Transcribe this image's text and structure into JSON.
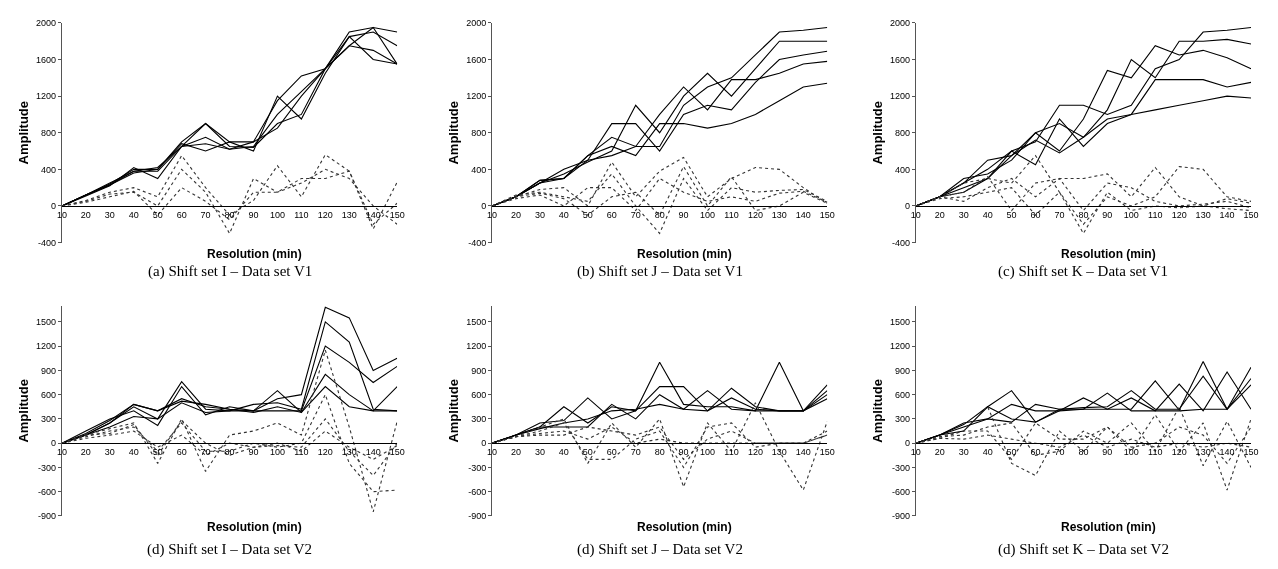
{
  "chart_data": [
    {
      "type": "line",
      "title": "(a) Shift set I – Data set V1",
      "xlabel": "Resolution (min)",
      "ylabel": "Amplitude",
      "x": [
        10,
        20,
        30,
        40,
        50,
        60,
        70,
        80,
        90,
        100,
        110,
        120,
        130,
        140,
        150
      ],
      "xlim": [
        10,
        150
      ],
      "xticks": [
        10,
        20,
        30,
        40,
        50,
        60,
        70,
        80,
        90,
        100,
        110,
        120,
        130,
        140,
        150
      ],
      "ylim": [
        -400,
        2000
      ],
      "yticks": [
        -400,
        0,
        400,
        800,
        1200,
        1600,
        2000
      ],
      "series": [
        {
          "color": "#000000",
          "line_style": "solid",
          "values": [
            0,
            120,
            230,
            380,
            420,
            650,
            900,
            700,
            700,
            1150,
            1420,
            1500,
            1900,
            1950,
            1900
          ]
        },
        {
          "color": "#000000",
          "line_style": "solid",
          "values": [
            0,
            110,
            220,
            420,
            300,
            650,
            750,
            620,
            650,
            1000,
            1250,
            1500,
            1750,
            1950,
            1550
          ]
        },
        {
          "color": "#000000",
          "line_style": "solid",
          "values": [
            0,
            120,
            240,
            400,
            400,
            700,
            900,
            650,
            640,
            900,
            1000,
            1500,
            1750,
            1700,
            1550
          ]
        },
        {
          "color": "#000000",
          "line_style": "solid",
          "values": [
            0,
            120,
            250,
            380,
            380,
            650,
            680,
            620,
            700,
            850,
            1200,
            1500,
            1850,
            1600,
            1550
          ]
        },
        {
          "color": "#000000",
          "line_style": "solid",
          "values": [
            0,
            120,
            230,
            360,
            400,
            680,
            600,
            700,
            600,
            1200,
            950,
            1450,
            1850,
            1900,
            1750
          ]
        },
        {
          "color": "#333333",
          "line_style": "dotted",
          "values": [
            0,
            60,
            150,
            200,
            100,
            550,
            200,
            -100,
            60,
            440,
            100,
            560,
            380,
            -250,
            260
          ]
        },
        {
          "color": "#333333",
          "line_style": "dotted",
          "values": [
            0,
            50,
            130,
            150,
            0,
            400,
            150,
            -300,
            300,
            150,
            250,
            400,
            300,
            0,
            -200
          ]
        },
        {
          "color": "#333333",
          "line_style": "dotted",
          "values": [
            0,
            40,
            100,
            160,
            -100,
            200,
            50,
            -150,
            150,
            150,
            300,
            300,
            380,
            -200,
            30
          ]
        }
      ]
    },
    {
      "type": "line",
      "title": "(b) Shift set J – Data set V1",
      "xlabel": "Resolution (min)",
      "ylabel": "Amplitude",
      "x": [
        10,
        20,
        30,
        40,
        50,
        60,
        70,
        80,
        90,
        100,
        110,
        120,
        130,
        140,
        150
      ],
      "xlim": [
        10,
        150
      ],
      "xticks": [
        10,
        20,
        30,
        40,
        50,
        60,
        70,
        80,
        90,
        100,
        110,
        120,
        130,
        140,
        150
      ],
      "ylim": [
        -400,
        2000
      ],
      "yticks": [
        -400,
        0,
        400,
        800,
        1200,
        1600,
        2000
      ],
      "series": [
        {
          "color": "#000000",
          "line_style": "solid",
          "values": [
            0,
            100,
            250,
            400,
            500,
            550,
            650,
            650,
            1100,
            1300,
            1400,
            1650,
            1900,
            1920,
            1950
          ]
        },
        {
          "color": "#000000",
          "line_style": "solid",
          "values": [
            0,
            100,
            250,
            350,
            480,
            600,
            1100,
            800,
            1200,
            1450,
            1200,
            1500,
            1800,
            1800,
            1800
          ]
        },
        {
          "color": "#000000",
          "line_style": "solid",
          "values": [
            0,
            100,
            280,
            300,
            500,
            900,
            900,
            600,
            1000,
            1100,
            1050,
            1350,
            1600,
            1650,
            1690
          ]
        },
        {
          "color": "#000000",
          "line_style": "solid",
          "values": [
            0,
            100,
            250,
            300,
            550,
            750,
            650,
            1000,
            1300,
            1050,
            1380,
            1380,
            1450,
            1550,
            1580
          ]
        },
        {
          "color": "#000000",
          "line_style": "solid",
          "values": [
            0,
            100,
            280,
            300,
            550,
            650,
            550,
            900,
            900,
            850,
            900,
            1000,
            1150,
            1300,
            1340
          ]
        },
        {
          "color": "#333333",
          "line_style": "dotted",
          "values": [
            0,
            100,
            180,
            200,
            0,
            480,
            100,
            380,
            530,
            100,
            300,
            420,
            400,
            200,
            30
          ]
        },
        {
          "color": "#333333",
          "line_style": "dotted",
          "values": [
            0,
            120,
            150,
            100,
            50,
            350,
            0,
            -300,
            300,
            -50,
            200,
            150,
            170,
            180,
            50
          ]
        },
        {
          "color": "#333333",
          "line_style": "dotted",
          "values": [
            0,
            80,
            120,
            0,
            200,
            200,
            -50,
            300,
            150,
            50,
            100,
            50,
            140,
            160,
            40
          ]
        },
        {
          "color": "#333333",
          "line_style": "dotted",
          "values": [
            0,
            100,
            140,
            80,
            -100,
            100,
            150,
            -100,
            430,
            0,
            320,
            -50,
            0,
            150,
            30
          ]
        }
      ]
    },
    {
      "type": "line",
      "title": "(c) Shift set K – Data set V1",
      "xlabel": "Resolution (min)",
      "ylabel": "Amplitude",
      "x": [
        10,
        20,
        30,
        40,
        50,
        60,
        70,
        80,
        90,
        100,
        110,
        120,
        130,
        140,
        150
      ],
      "xlim": [
        10,
        150
      ],
      "xticks": [
        10,
        20,
        30,
        40,
        50,
        60,
        70,
        80,
        90,
        100,
        110,
        120,
        130,
        140,
        150
      ],
      "ylim": [
        -400,
        2000
      ],
      "yticks": [
        -400,
        0,
        400,
        800,
        1200,
        1600,
        2000
      ],
      "series": [
        {
          "color": "#000000",
          "line_style": "solid",
          "values": [
            0,
            100,
            250,
            400,
            600,
            700,
            1100,
            1100,
            1000,
            1100,
            1500,
            1600,
            1900,
            1920,
            1950
          ]
        },
        {
          "color": "#000000",
          "line_style": "solid",
          "values": [
            0,
            100,
            250,
            500,
            550,
            800,
            900,
            750,
            1050,
            1600,
            1400,
            1800,
            1800,
            1820,
            1770
          ]
        },
        {
          "color": "#000000",
          "line_style": "solid",
          "values": [
            0,
            100,
            300,
            350,
            500,
            800,
            600,
            950,
            1480,
            1400,
            1750,
            1650,
            1700,
            1620,
            1500
          ]
        },
        {
          "color": "#000000",
          "line_style": "solid",
          "values": [
            0,
            100,
            200,
            300,
            600,
            450,
            950,
            650,
            900,
            1000,
            1380,
            1380,
            1380,
            1300,
            1350
          ]
        },
        {
          "color": "#000000",
          "line_style": "solid",
          "values": [
            0,
            100,
            150,
            300,
            550,
            720,
            580,
            750,
            950,
            1000,
            1050,
            1100,
            1150,
            1200,
            1180
          ]
        },
        {
          "color": "#333333",
          "line_style": "dotted",
          "values": [
            0,
            100,
            250,
            300,
            250,
            550,
            150,
            -200,
            100,
            0,
            100,
            430,
            400,
            100,
            50
          ]
        },
        {
          "color": "#333333",
          "line_style": "dotted",
          "values": [
            0,
            100,
            150,
            320,
            -50,
            250,
            300,
            300,
            350,
            100,
            420,
            100,
            0,
            80,
            30
          ]
        },
        {
          "color": "#333333",
          "line_style": "dotted",
          "values": [
            0,
            100,
            50,
            200,
            300,
            100,
            300,
            -50,
            250,
            200,
            50,
            0,
            20,
            50,
            -20
          ]
        },
        {
          "color": "#333333",
          "line_style": "dotted",
          "values": [
            0,
            80,
            100,
            150,
            200,
            -100,
            150,
            -300,
            150,
            -50,
            0,
            -20,
            0,
            -30,
            -50
          ]
        }
      ]
    },
    {
      "type": "line",
      "title": "(d) Shift set I – Data set V2",
      "xlabel": "Resolution (min)",
      "ylabel": "Amplitude",
      "x": [
        10,
        20,
        30,
        40,
        50,
        60,
        70,
        80,
        90,
        100,
        110,
        120,
        130,
        140,
        150
      ],
      "xlim": [
        10,
        150
      ],
      "xticks": [
        10,
        20,
        30,
        40,
        50,
        60,
        70,
        80,
        90,
        100,
        110,
        120,
        130,
        140,
        150
      ],
      "ylim": [
        -900,
        1700
      ],
      "yticks": [
        -900,
        -600,
        -300,
        0,
        300,
        600,
        900,
        1200,
        1500
      ],
      "series": [
        {
          "color": "#000000",
          "line_style": "solid",
          "values": [
            0,
            120,
            280,
            480,
            400,
            550,
            450,
            420,
            400,
            550,
            600,
            1680,
            1550,
            900,
            1050
          ]
        },
        {
          "color": "#000000",
          "line_style": "solid",
          "values": [
            0,
            100,
            250,
            450,
            300,
            760,
            420,
            400,
            480,
            500,
            420,
            1500,
            1250,
            420,
            400
          ]
        },
        {
          "color": "#000000",
          "line_style": "solid",
          "values": [
            0,
            150,
            300,
            400,
            220,
            700,
            350,
            450,
            400,
            400,
            400,
            1200,
            1000,
            750,
            950
          ]
        },
        {
          "color": "#000000",
          "line_style": "solid",
          "values": [
            0,
            100,
            200,
            330,
            300,
            500,
            380,
            400,
            400,
            650,
            380,
            850,
            600,
            400,
            700
          ]
        },
        {
          "color": "#000000",
          "line_style": "solid",
          "values": [
            0,
            100,
            250,
            480,
            400,
            520,
            480,
            420,
            380,
            450,
            380,
            700,
            450,
            400,
            400
          ]
        },
        {
          "color": "#333333",
          "line_style": "dotted",
          "values": [
            0,
            100,
            180,
            250,
            -250,
            300,
            -350,
            100,
            150,
            250,
            100,
            1150,
            200,
            -850,
            270
          ]
        },
        {
          "color": "#333333",
          "line_style": "dotted",
          "values": [
            0,
            80,
            150,
            200,
            -100,
            250,
            -100,
            -100,
            0,
            -50,
            0,
            600,
            -250,
            -600,
            -580
          ]
        },
        {
          "color": "#333333",
          "line_style": "dotted",
          "values": [
            0,
            60,
            100,
            150,
            -50,
            100,
            -150,
            0,
            -50,
            -30,
            -50,
            300,
            -100,
            -400,
            0
          ]
        },
        {
          "color": "#333333",
          "line_style": "dotted",
          "values": [
            0,
            100,
            120,
            230,
            -150,
            280,
            0,
            -150,
            -50,
            0,
            -100,
            150,
            -50,
            -200,
            -30
          ]
        }
      ]
    },
    {
      "type": "line",
      "title": "(d) Shift set J – Data set V2",
      "xlabel": "Resolution (min)",
      "ylabel": "Amplitude",
      "x": [
        10,
        20,
        30,
        40,
        50,
        60,
        70,
        80,
        90,
        100,
        110,
        120,
        130,
        140,
        150
      ],
      "xlim": [
        10,
        150
      ],
      "xticks": [
        10,
        20,
        30,
        40,
        50,
        60,
        70,
        80,
        90,
        100,
        110,
        120,
        130,
        140,
        150
      ],
      "ylim": [
        -900,
        1700
      ],
      "yticks": [
        -900,
        -600,
        -300,
        0,
        300,
        600,
        900,
        1200,
        1500
      ],
      "series": [
        {
          "color": "#000000",
          "line_style": "solid",
          "values": [
            0,
            100,
            200,
            450,
            250,
            450,
            400,
            1000,
            480,
            450,
            450,
            400,
            1000,
            400,
            720
          ]
        },
        {
          "color": "#000000",
          "line_style": "solid",
          "values": [
            0,
            100,
            250,
            280,
            560,
            300,
            400,
            700,
            700,
            400,
            680,
            450,
            400,
            400,
            650
          ]
        },
        {
          "color": "#000000",
          "line_style": "solid",
          "values": [
            0,
            100,
            200,
            200,
            200,
            480,
            300,
            600,
            420,
            650,
            420,
            400,
            400,
            400,
            600
          ]
        },
        {
          "color": "#000000",
          "line_style": "solid",
          "values": [
            0,
            100,
            180,
            250,
            300,
            400,
            420,
            480,
            420,
            400,
            560,
            420,
            400,
            400,
            550
          ]
        },
        {
          "color": "#333333",
          "line_style": "dotted",
          "values": [
            0,
            80,
            200,
            300,
            -250,
            250,
            -50,
            300,
            -540,
            250,
            -100,
            500,
            -100,
            -580,
            270
          ]
        },
        {
          "color": "#333333",
          "line_style": "dotted",
          "values": [
            0,
            80,
            150,
            250,
            -200,
            -200,
            50,
            150,
            -300,
            200,
            250,
            -50,
            0,
            0,
            150
          ]
        },
        {
          "color": "#333333",
          "line_style": "dotted",
          "values": [
            0,
            80,
            100,
            100,
            200,
            150,
            100,
            200,
            -200,
            50,
            150,
            0,
            0,
            0,
            100
          ]
        },
        {
          "color": "#333333",
          "line_style": "dotted",
          "values": [
            0,
            80,
            120,
            150,
            50,
            200,
            0,
            50,
            0,
            0,
            0,
            0,
            0,
            0,
            100
          ]
        }
      ]
    },
    {
      "type": "line",
      "title": "(d) Shift set K – Data set V2",
      "xlabel": "Resolution (min)",
      "ylabel": "Amplitude",
      "x": [
        10,
        20,
        30,
        40,
        50,
        60,
        70,
        80,
        90,
        100,
        110,
        120,
        130,
        140,
        150
      ],
      "xlim": [
        10,
        150
      ],
      "xticks": [
        10,
        20,
        30,
        40,
        50,
        60,
        70,
        80,
        90,
        100,
        110,
        120,
        130,
        140,
        150
      ],
      "ylim": [
        -900,
        1700
      ],
      "yticks": [
        -900,
        -600,
        -300,
        0,
        300,
        600,
        900,
        1200,
        1500
      ],
      "series": [
        {
          "color": "#000000",
          "line_style": "solid",
          "values": [
            0,
            100,
            230,
            450,
            650,
            260,
            400,
            560,
            420,
            420,
            770,
            410,
            1010,
            420,
            940
          ]
        },
        {
          "color": "#000000",
          "line_style": "solid",
          "values": [
            0,
            100,
            250,
            300,
            260,
            480,
            420,
            420,
            620,
            400,
            400,
            730,
            400,
            880,
            420
          ]
        },
        {
          "color": "#000000",
          "line_style": "solid",
          "values": [
            0,
            100,
            150,
            450,
            300,
            260,
            420,
            440,
            450,
            650,
            420,
            420,
            830,
            420,
            800
          ]
        },
        {
          "color": "#000000",
          "line_style": "solid",
          "values": [
            0,
            100,
            200,
            300,
            480,
            400,
            400,
            420,
            420,
            560,
            400,
            400,
            420,
            420,
            720
          ]
        },
        {
          "color": "#333333",
          "line_style": "dotted",
          "values": [
            0,
            80,
            150,
            450,
            -250,
            -400,
            150,
            -100,
            200,
            -100,
            350,
            -100,
            250,
            -580,
            300
          ]
        },
        {
          "color": "#333333",
          "line_style": "dotted",
          "values": [
            0,
            80,
            100,
            200,
            250,
            -150,
            -100,
            150,
            0,
            250,
            -100,
            450,
            -280,
            270,
            -300
          ]
        },
        {
          "color": "#333333",
          "line_style": "dotted",
          "values": [
            0,
            60,
            150,
            150,
            -200,
            250,
            50,
            50,
            200,
            -50,
            0,
            200,
            100,
            -250,
            200
          ]
        },
        {
          "color": "#333333",
          "line_style": "dotted",
          "values": [
            0,
            60,
            50,
            100,
            50,
            0,
            -50,
            100,
            -50,
            50,
            -50,
            0,
            -50,
            0,
            -50
          ]
        }
      ]
    }
  ]
}
